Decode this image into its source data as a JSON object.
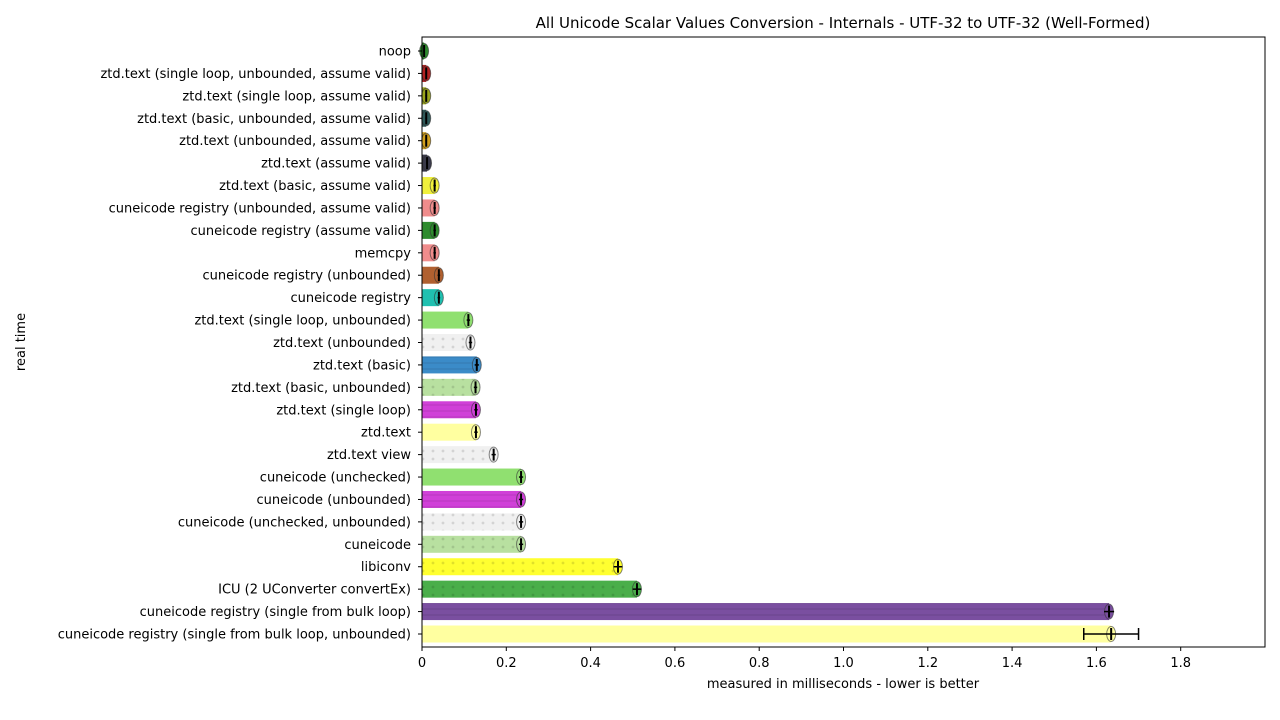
{
  "chart_data": {
    "type": "bar",
    "orientation": "horizontal",
    "title": "All Unicode Scalar Values Conversion - Internals - UTF-32 to UTF-32 (Well-Formed)",
    "xlabel": "measured in milliseconds - lower is better",
    "ylabel": "real time",
    "xlim": [
      0,
      2.0
    ],
    "x_ticks": [
      "0",
      "0.2",
      "0.4",
      "0.6",
      "0.8",
      "1.0",
      "1.2",
      "1.4",
      "1.6",
      "1.8"
    ],
    "grid": false,
    "categories": [
      "noop",
      "ztd.text (single loop, unbounded, assume valid)",
      "ztd.text (single loop, assume valid)",
      "ztd.text (basic, unbounded, assume valid)",
      "ztd.text (unbounded, assume valid)",
      "ztd.text (assume valid)",
      "ztd.text (basic, assume valid)",
      "cuneicode registry (unbounded, assume valid)",
      "cuneicode registry (assume valid)",
      "memcpy",
      "cuneicode registry (unbounded)",
      "cuneicode registry",
      "ztd.text (single loop, unbounded)",
      "ztd.text (unbounded)",
      "ztd.text (basic)",
      "ztd.text (basic, unbounded)",
      "ztd.text (single loop)",
      "ztd.text",
      "ztd.text view",
      "cuneicode (unchecked)",
      "cuneicode (unbounded)",
      "cuneicode (unchecked, unbounded)",
      "cuneicode",
      "libiconv",
      "ICU (2 UConverter convertEx)",
      "cuneicode registry (single from bulk loop)",
      "cuneicode registry (single from bulk loop, unbounded)"
    ],
    "values": [
      0.005,
      0.01,
      0.01,
      0.01,
      0.01,
      0.012,
      0.03,
      0.03,
      0.03,
      0.03,
      0.04,
      0.04,
      0.11,
      0.115,
      0.13,
      0.127,
      0.128,
      0.128,
      0.17,
      0.235,
      0.235,
      0.235,
      0.235,
      0.465,
      0.51,
      1.63,
      1.635
    ],
    "error": [
      0.002,
      0.002,
      0.002,
      0.002,
      0.002,
      0.002,
      0.003,
      0.003,
      0.003,
      0.003,
      0.003,
      0.003,
      0.004,
      0.004,
      0.005,
      0.004,
      0.004,
      0.004,
      0.005,
      0.005,
      0.005,
      0.005,
      0.005,
      0.01,
      0.01,
      0.012,
      0.065
    ],
    "colors": [
      "#2e8b2e",
      "#b22222",
      "#9aa51c",
      "#2f5a5a",
      "#d2a01e",
      "#3a3a4a",
      "#f0f03c",
      "#f08c8c",
      "#2e8b2e",
      "#f08c8c",
      "#b06030",
      "#20c0b0",
      "#90e070",
      "#f0f0f0",
      "#3b8bc8",
      "#b8e0a0",
      "#d040d8",
      "#ffffa0",
      "#f0f0f0",
      "#90e070",
      "#d040d8",
      "#f0f0f0",
      "#b8e0a0",
      "#ffff30",
      "#4aae4a",
      "#7a4fa0",
      "#ffffa0"
    ],
    "patterns": [
      "",
      "",
      "",
      "",
      "",
      "",
      "",
      "",
      "",
      "",
      "",
      "",
      "",
      "dots",
      "stripes",
      "dots",
      "stripes",
      "",
      "dots",
      "",
      "stripes",
      "dots",
      "dots",
      "dots",
      "dots",
      "stripes",
      ""
    ]
  }
}
